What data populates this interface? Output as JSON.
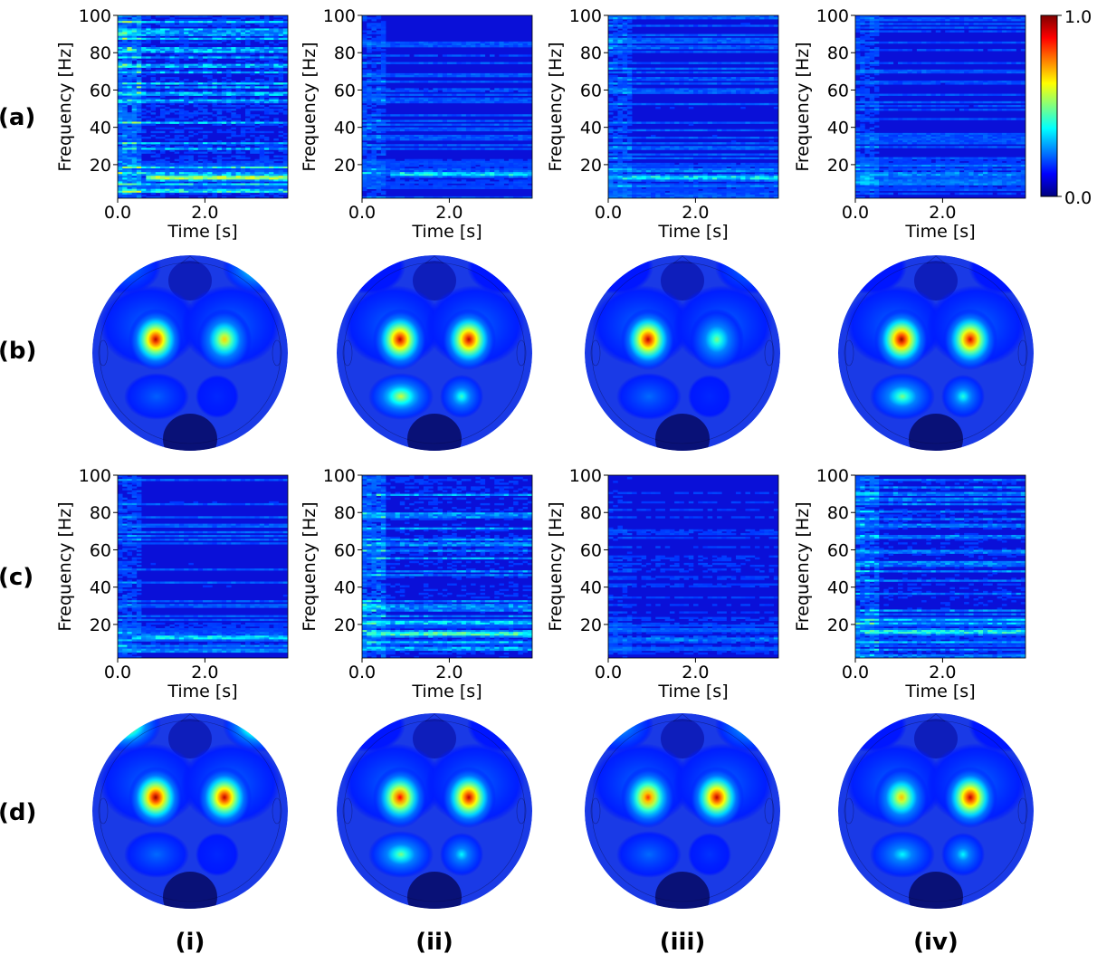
{
  "row_labels": [
    "(a)",
    "(b)",
    "(c)",
    "(d)"
  ],
  "column_labels": [
    "(i)",
    "(ii)",
    "(iii)",
    "(iv)"
  ],
  "colorbar": {
    "max_label": "1.0",
    "min_label": "0.0",
    "colormap": [
      "#00007f",
      "#0000ff",
      "#0080ff",
      "#00ffff",
      "#80ff80",
      "#ffff00",
      "#ff8000",
      "#ff0000",
      "#7f0000"
    ]
  },
  "chart_data": [
    {
      "type": "heatmap",
      "kind": "spectrogram",
      "rows": [
        "(a)",
        "(c)"
      ],
      "columns": [
        "(i)",
        "(ii)",
        "(iii)",
        "(iv)"
      ],
      "xlabel": "Time [s]",
      "ylabel": "Frequency [Hz]",
      "x_ticks": [
        "0.0",
        "2.0"
      ],
      "x_tick_values": [
        0.0,
        2.0
      ],
      "y_ticks": [
        "20",
        "40",
        "60",
        "80",
        "100"
      ],
      "y_tick_values": [
        20,
        40,
        60,
        80,
        100
      ],
      "xlim": [
        0.0,
        3.9
      ],
      "ylim": [
        2,
        100
      ],
      "value_range": [
        0.0,
        1.0
      ],
      "panels": [
        {
          "row": "(a)",
          "col": "(i)",
          "band_hz": 13,
          "band_strength": 0.6,
          "band_start_s": 0.6,
          "noise": 0.28
        },
        {
          "row": "(a)",
          "col": "(ii)",
          "band_hz": 15,
          "band_strength": 0.42,
          "band_start_s": 0.7,
          "noise": 0.16
        },
        {
          "row": "(a)",
          "col": "(iii)",
          "band_hz": 13,
          "band_strength": 0.42,
          "band_start_s": 0.3,
          "noise": 0.17
        },
        {
          "row": "(a)",
          "col": "(iv)",
          "band_hz": 15,
          "band_strength": 0.3,
          "band_start_s": 0.4,
          "noise": 0.15
        },
        {
          "row": "(c)",
          "col": "(i)",
          "band_hz": 13,
          "band_strength": 0.4,
          "band_start_s": 0.3,
          "noise": 0.17
        },
        {
          "row": "(c)",
          "col": "(ii)",
          "band_hz": 15,
          "band_strength": 0.5,
          "band_start_s": 0.1,
          "noise": 0.24
        },
        {
          "row": "(c)",
          "col": "(iii)",
          "band_hz": 12,
          "band_strength": 0.28,
          "band_start_s": 0.2,
          "noise": 0.1
        },
        {
          "row": "(c)",
          "col": "(iv)",
          "band_hz": 16,
          "band_strength": 0.45,
          "band_start_s": 0.2,
          "noise": 0.22
        }
      ]
    },
    {
      "type": "heatmap",
      "kind": "scalp-topography",
      "rows": [
        "(b)",
        "(d)"
      ],
      "columns": [
        "(i)",
        "(ii)",
        "(iii)",
        "(iv)"
      ],
      "value_range": [
        0.0,
        1.0
      ],
      "panels": [
        {
          "row": "(b)",
          "col": "(i)",
          "left_peak": 0.95,
          "right_peak": 0.7,
          "posterior_left": 0.28,
          "posterior_right": 0.18,
          "frontal_left": 0.35,
          "frontal_right": 0.6
        },
        {
          "row": "(b)",
          "col": "(ii)",
          "left_peak": 0.95,
          "right_peak": 0.95,
          "posterior_left": 0.62,
          "posterior_right": 0.5,
          "frontal_left": 0.15,
          "frontal_right": 0.15
        },
        {
          "row": "(b)",
          "col": "(iii)",
          "left_peak": 0.95,
          "right_peak": 0.55,
          "posterior_left": 0.3,
          "posterior_right": 0.18,
          "frontal_left": 0.15,
          "frontal_right": 0.35
        },
        {
          "row": "(b)",
          "col": "(iv)",
          "left_peak": 0.98,
          "right_peak": 0.93,
          "posterior_left": 0.55,
          "posterior_right": 0.48,
          "frontal_left": 0.15,
          "frontal_right": 0.15
        },
        {
          "row": "(d)",
          "col": "(i)",
          "left_peak": 0.98,
          "right_peak": 0.95,
          "posterior_left": 0.3,
          "posterior_right": 0.18,
          "frontal_left": 0.75,
          "frontal_right": 0.75
        },
        {
          "row": "(d)",
          "col": "(ii)",
          "left_peak": 0.9,
          "right_peak": 0.95,
          "posterior_left": 0.55,
          "posterior_right": 0.45,
          "frontal_left": 0.15,
          "frontal_right": 0.15
        },
        {
          "row": "(d)",
          "col": "(iii)",
          "left_peak": 0.85,
          "right_peak": 0.95,
          "posterior_left": 0.3,
          "posterior_right": 0.2,
          "frontal_left": 0.45,
          "frontal_right": 0.5
        },
        {
          "row": "(d)",
          "col": "(iv)",
          "left_peak": 0.72,
          "right_peak": 0.95,
          "posterior_left": 0.45,
          "posterior_right": 0.45,
          "frontal_left": 0.15,
          "frontal_right": 0.15
        }
      ]
    }
  ]
}
